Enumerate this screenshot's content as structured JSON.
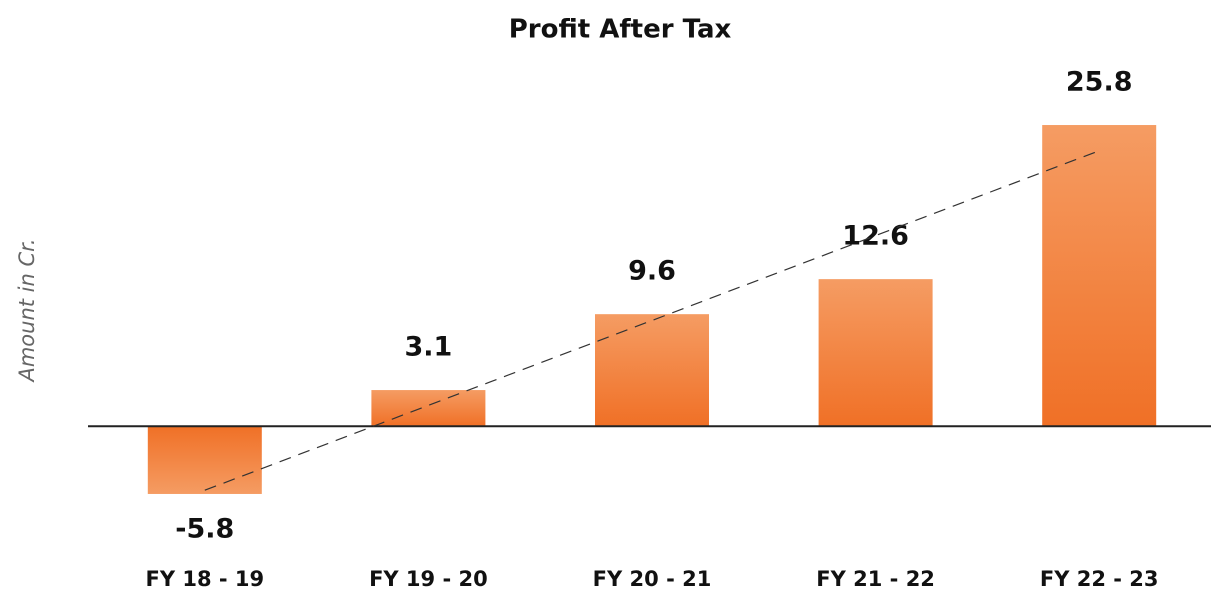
{
  "chart_data": {
    "type": "bar",
    "title": "Profit After Tax",
    "y_label": "Amount in Cr.",
    "categories": [
      "FY 18 - 19",
      "FY 19 - 20",
      "FY 20 - 21",
      "FY 21 - 22",
      "FY 22 - 23"
    ],
    "values": [
      -5.8,
      3.1,
      9.6,
      12.6,
      25.8
    ],
    "color": "#f2772e",
    "ylim": [
      -10,
      30
    ],
    "trendline": true
  }
}
